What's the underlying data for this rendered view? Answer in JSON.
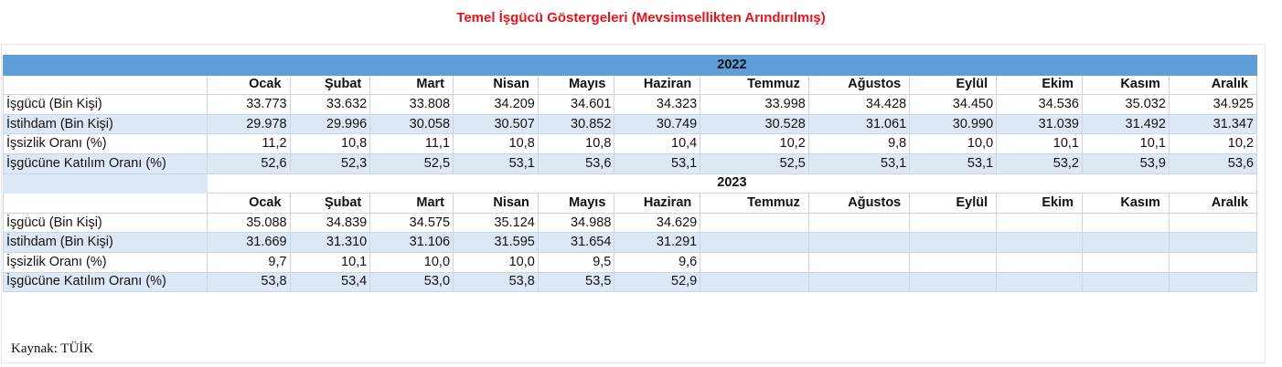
{
  "title": "Temel İşgücü Göstergeleri (Mevsimsellikten Arındırılmış)",
  "source": "Kaynak: TÜİK",
  "chart_data": {
    "type": "table",
    "title": "Temel İşgücü Göstergeleri (Mevsimsellikten Arındırılmış)",
    "months": [
      "Ocak",
      "Şubat",
      "Mart",
      "Nisan",
      "Mayıs",
      "Haziran",
      "Temmuz",
      "Ağustos",
      "Eylül",
      "Ekim",
      "Kasım",
      "Aralık"
    ],
    "years": [
      {
        "year": "2022",
        "rows": [
          {
            "label": "İşgücü (Bin Kişi)",
            "values": [
              "33.773",
              "33.632",
              "33.808",
              "34.209",
              "34.601",
              "34.323",
              "33.998",
              "34.428",
              "34.450",
              "34.536",
              "35.032",
              "34.925"
            ]
          },
          {
            "label": "İstihdam (Bin Kişi)",
            "values": [
              "29.978",
              "29.996",
              "30.058",
              "30.507",
              "30.852",
              "30.749",
              "30.528",
              "31.061",
              "30.990",
              "31.039",
              "31.492",
              "31.347"
            ]
          },
          {
            "label": "İşsizlik Oranı (%)",
            "values": [
              "11,2",
              "10,8",
              "11,1",
              "10,8",
              "10,8",
              "10,4",
              "10,2",
              "9,8",
              "10,0",
              "10,1",
              "10,1",
              "10,2"
            ]
          },
          {
            "label": "İşgücüne Katılım Oranı (%)",
            "values": [
              "52,6",
              "52,3",
              "52,5",
              "53,1",
              "53,6",
              "53,1",
              "52,5",
              "53,1",
              "53,1",
              "53,2",
              "53,9",
              "53,6"
            ]
          }
        ]
      },
      {
        "year": "2023",
        "rows": [
          {
            "label": "İşgücü (Bin Kişi)",
            "values": [
              "35.088",
              "34.839",
              "34.575",
              "35.124",
              "34.988",
              "34.629",
              "",
              "",
              "",
              "",
              "",
              ""
            ]
          },
          {
            "label": "İstihdam (Bin Kişi)",
            "values": [
              "31.669",
              "31.310",
              "31.106",
              "31.595",
              "31.654",
              "31.291",
              "",
              "",
              "",
              "",
              "",
              ""
            ]
          },
          {
            "label": "İşsizlik Oranı (%)",
            "values": [
              "9,7",
              "10,1",
              "10,0",
              "10,0",
              "9,5",
              "9,6",
              "",
              "",
              "",
              "",
              "",
              ""
            ]
          },
          {
            "label": "İşgücüne Katılım Oranı (%)",
            "values": [
              "53,8",
              "53,4",
              "53,0",
              "53,8",
              "53,5",
              "52,9",
              "",
              "",
              "",
              "",
              "",
              ""
            ]
          }
        ]
      }
    ]
  }
}
